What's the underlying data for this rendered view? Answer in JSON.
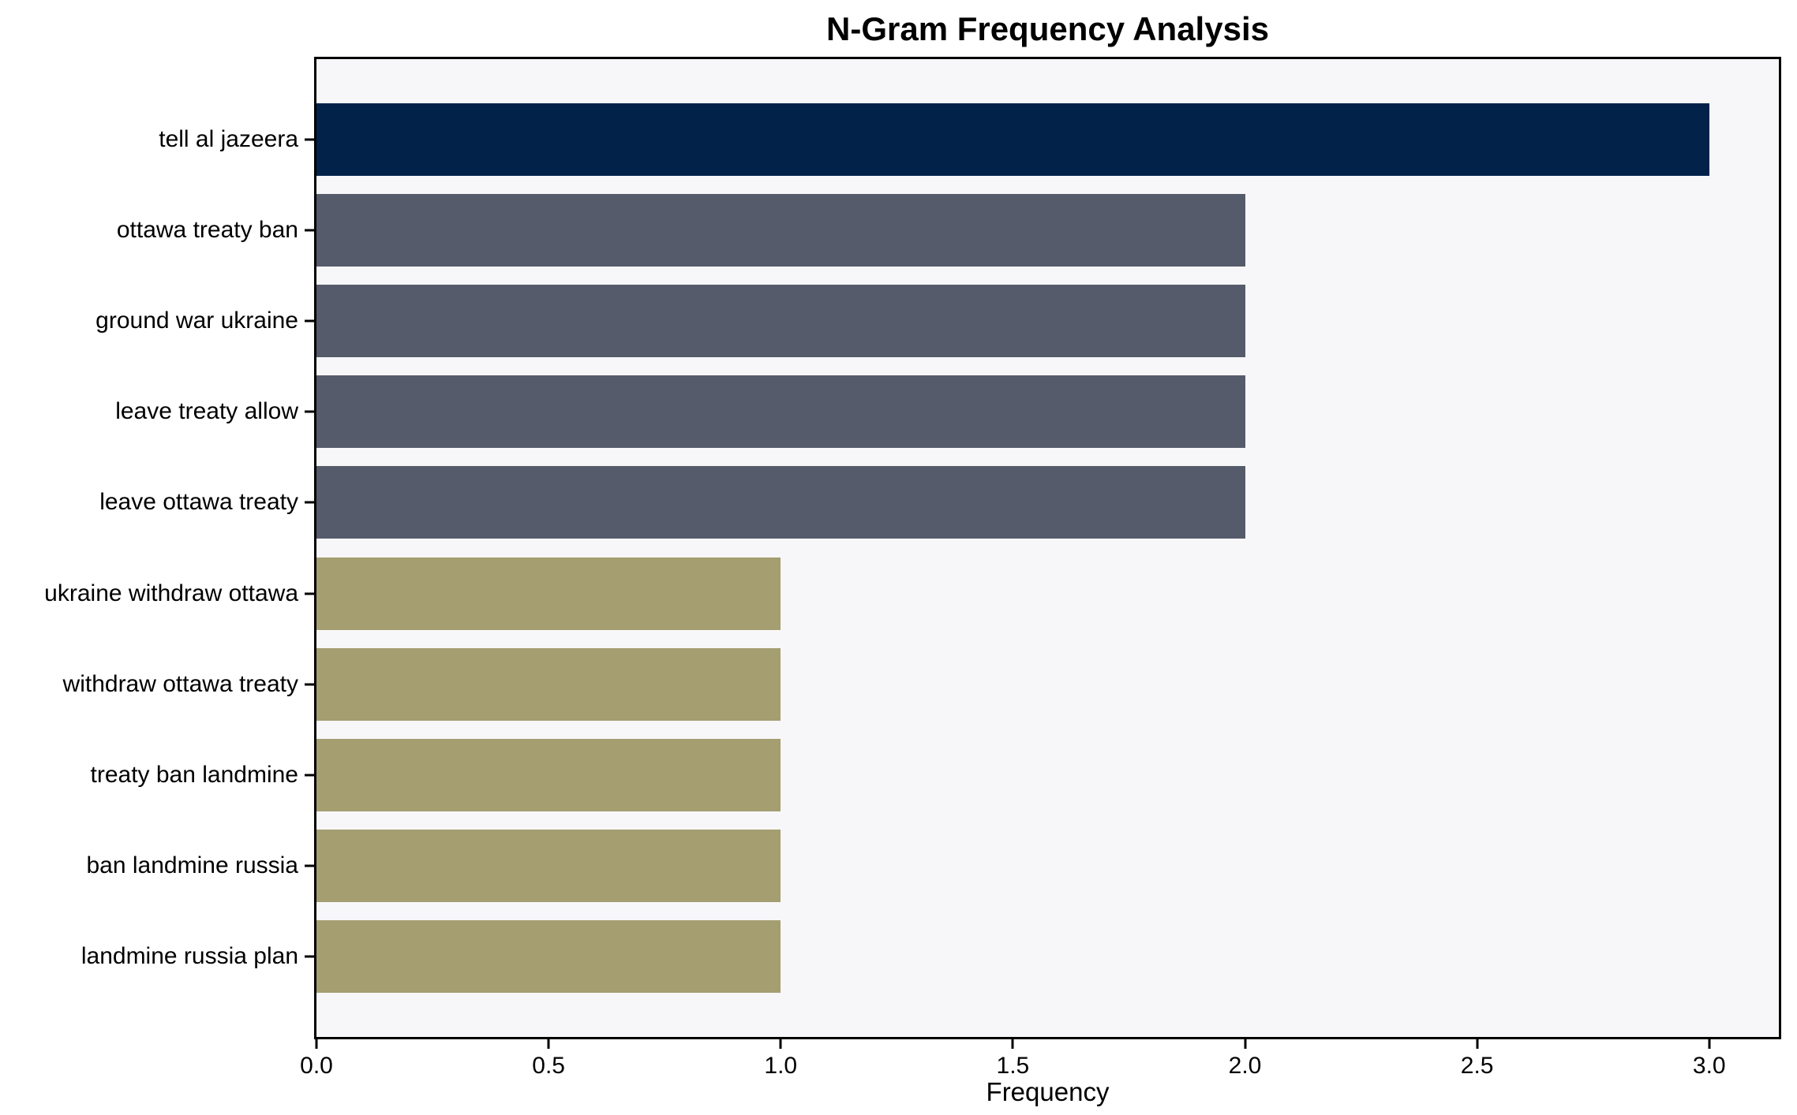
{
  "chart_data": {
    "type": "bar",
    "orientation": "horizontal",
    "title": "N-Gram Frequency Analysis",
    "xlabel": "Frequency",
    "ylabel": "",
    "categories": [
      "tell al jazeera",
      "ottawa treaty ban",
      "ground war ukraine",
      "leave treaty allow",
      "leave ottawa treaty",
      "ukraine withdraw ottawa",
      "withdraw ottawa treaty",
      "treaty ban landmine",
      "ban landmine russia",
      "landmine russia plan"
    ],
    "values": [
      3,
      2,
      2,
      2,
      2,
      1,
      1,
      1,
      1,
      1
    ],
    "bar_colors": [
      "#02224a",
      "#565b6b",
      "#565b6b",
      "#565b6b",
      "#565b6b",
      "#a49e71",
      "#a49e71",
      "#a49e71",
      "#a49e71",
      "#a49e71"
    ],
    "xlim": [
      0,
      3.15
    ],
    "xticks": [
      0.0,
      0.5,
      1.0,
      1.5,
      2.0,
      2.5,
      3.0
    ],
    "xtick_labels": [
      "0.0",
      "0.5",
      "1.0",
      "1.5",
      "2.0",
      "2.5",
      "3.0"
    ],
    "grid": false,
    "legend": null,
    "plot_background": "#f7f7f9",
    "figure_background": "#ffffff",
    "spine_color": "#000000"
  }
}
